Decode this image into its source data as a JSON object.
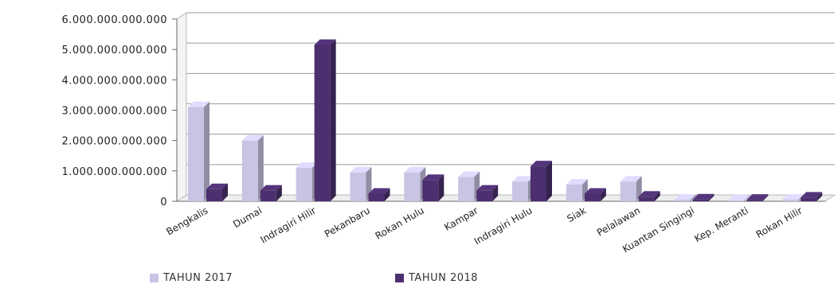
{
  "chart_data": {
    "type": "bar",
    "title": "",
    "xlabel": "",
    "ylabel": "",
    "ylim": [
      0,
      6000000000000
    ],
    "yticks": [
      0,
      1000000000000,
      2000000000000,
      3000000000000,
      4000000000000,
      5000000000000,
      6000000000000
    ],
    "ytick_labels": [
      "0",
      "1.000.000.000.000",
      "2.000.000.000.000",
      "3.000.000.000.000",
      "4.000.000.000.000",
      "5.000.000.000.000",
      "6.000.000.000.000"
    ],
    "categories": [
      "Bengkalis",
      "Dumai",
      "Indragiri Hilir",
      "Pekanbaru",
      "Rokan Hulu",
      "Kampar",
      "Indragiri Hulu",
      "Siak",
      "Pelalawan",
      "Kuantan Singingi",
      "Kep. Meranti",
      "Rokan Hilir"
    ],
    "series": [
      {
        "name": "TAHUN 2017",
        "color": "#c8c4e4",
        "values": [
          3100000000000,
          2000000000000,
          1100000000000,
          950000000000,
          950000000000,
          800000000000,
          650000000000,
          550000000000,
          650000000000,
          50000000000,
          30000000000,
          50000000000
        ]
      },
      {
        "name": "TAHUN 2018",
        "color": "#4b2f6e",
        "values": [
          400000000000,
          350000000000,
          5150000000000,
          250000000000,
          700000000000,
          350000000000,
          1150000000000,
          250000000000,
          150000000000,
          60000000000,
          50000000000,
          120000000000
        ]
      }
    ],
    "grid": true,
    "legend_position": "bottom"
  }
}
